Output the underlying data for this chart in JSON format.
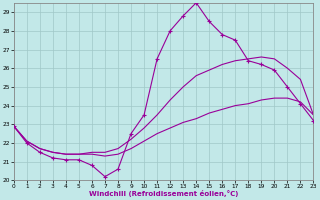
{
  "background_color": "#c2e8e8",
  "line_color": "#990099",
  "grid_color": "#a0c8c8",
  "xlabel": "Windchill (Refroidissement éolien,°C)",
  "ylim": [
    20,
    29.5
  ],
  "xlim": [
    0,
    23
  ],
  "yticks": [
    20,
    21,
    22,
    23,
    24,
    25,
    26,
    27,
    28,
    29
  ],
  "xticks": [
    0,
    1,
    2,
    3,
    4,
    5,
    6,
    7,
    8,
    9,
    10,
    11,
    12,
    13,
    14,
    15,
    16,
    17,
    18,
    19,
    20,
    21,
    22,
    23
  ],
  "curve1_x": [
    0,
    1,
    2,
    3,
    4,
    5,
    6,
    7,
    8,
    9,
    10,
    11,
    12,
    13,
    14,
    15,
    16,
    17,
    18,
    19,
    20,
    21,
    22,
    23
  ],
  "curve1_y": [
    22.9,
    22.0,
    21.5,
    21.2,
    21.1,
    21.1,
    20.8,
    20.2,
    20.6,
    22.5,
    23.5,
    26.5,
    28.0,
    28.8,
    29.5,
    28.5,
    27.8,
    27.5,
    26.4,
    26.2,
    25.9,
    25.0,
    24.1,
    23.2
  ],
  "curve2_x": [
    0,
    1,
    2,
    3,
    4,
    5,
    6,
    7,
    8,
    9,
    10,
    11,
    12,
    13,
    14,
    15,
    16,
    17,
    18,
    19,
    20,
    21,
    22,
    23
  ],
  "curve2_y": [
    22.9,
    22.1,
    21.7,
    21.5,
    21.4,
    21.4,
    21.5,
    21.5,
    21.7,
    22.2,
    22.8,
    23.5,
    24.3,
    25.0,
    25.6,
    25.9,
    26.2,
    26.4,
    26.5,
    26.6,
    26.5,
    26.0,
    25.4,
    23.5
  ],
  "curve3_x": [
    0,
    1,
    2,
    3,
    4,
    5,
    6,
    7,
    8,
    9,
    10,
    11,
    12,
    13,
    14,
    15,
    16,
    17,
    18,
    19,
    20,
    21,
    22,
    23
  ],
  "curve3_y": [
    22.9,
    22.1,
    21.7,
    21.5,
    21.4,
    21.4,
    21.4,
    21.3,
    21.4,
    21.7,
    22.1,
    22.5,
    22.8,
    23.1,
    23.3,
    23.6,
    23.8,
    24.0,
    24.1,
    24.3,
    24.4,
    24.4,
    24.2,
    23.5
  ]
}
